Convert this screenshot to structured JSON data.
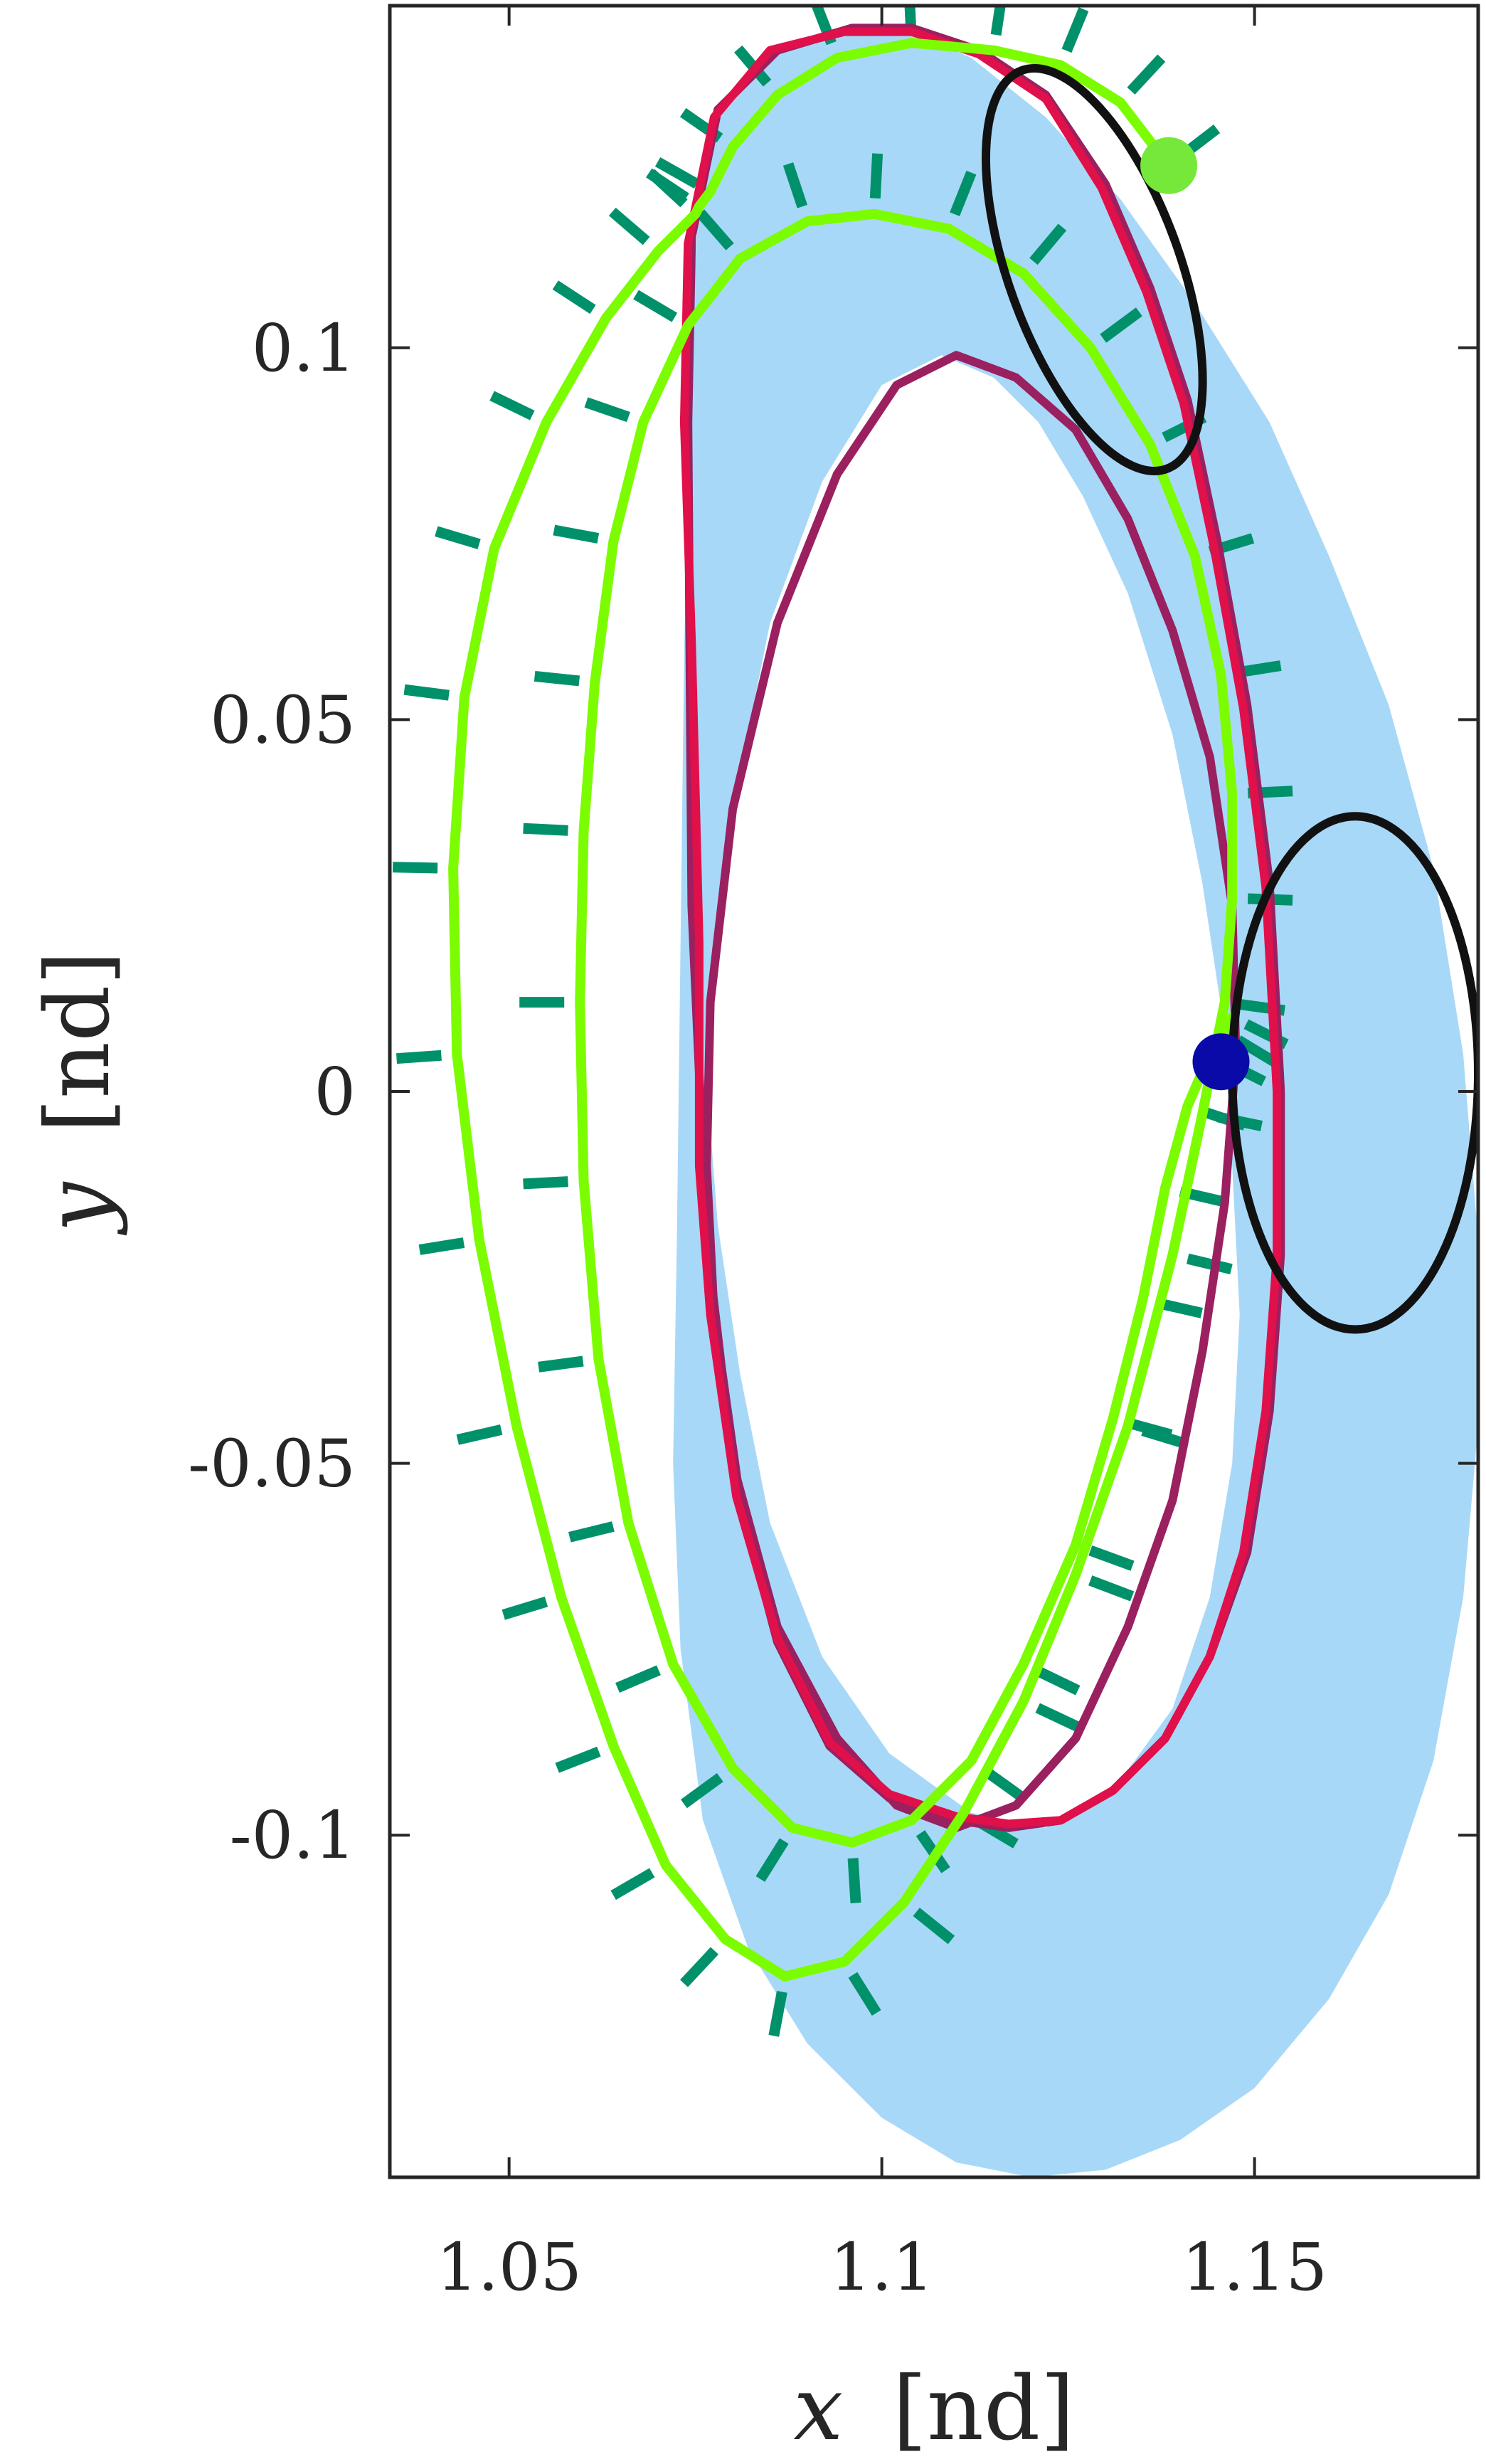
{
  "chart_data": {
    "type": "line",
    "title": "",
    "xlabel": {
      "var": "x",
      "unit": "[nd]"
    },
    "ylabel": {
      "var": "y",
      "unit": "[nd]"
    },
    "xlim": [
      1.034,
      1.18
    ],
    "ylim": [
      -0.146,
      0.146
    ],
    "xticks": [
      1.05,
      1.1,
      1.15
    ],
    "xtick_labels": [
      "1.05",
      "1.1",
      "1.15"
    ],
    "yticks": [
      -0.1,
      -0.05,
      0,
      0.05,
      0.1
    ],
    "ytick_labels": [
      "-0.1",
      "-0.05",
      "0",
      "0.05",
      "0.1"
    ],
    "grid": false,
    "colors": {
      "region": "#a8d8f8",
      "magenta": "#9a2060",
      "red": "#e0104a",
      "lime": "#7cfc00",
      "green": "#00916b",
      "black": "#111111",
      "blue_point": "#0a0aa8",
      "green_point": "#76e83a"
    },
    "shaded_region": {
      "x": [
        1.0755,
        1.0795,
        1.086,
        1.095,
        1.103,
        1.112,
        1.122,
        1.132,
        1.142,
        1.152,
        1.16,
        1.168,
        1.174,
        1.178,
        1.18,
        1.18,
        1.178,
        1.174,
        1.168,
        1.16,
        1.15,
        1.14,
        1.13,
        1.12,
        1.11,
        1.1,
        1.09,
        1.082,
        1.076,
        1.073,
        1.072,
        1.0725,
        1.073,
        1.0735,
        1.0745,
        1.0755
      ],
      "y": [
        0.123,
        0.134,
        0.14,
        0.143,
        0.143,
        0.139,
        0.131,
        0.12,
        0.106,
        0.09,
        0.072,
        0.052,
        0.03,
        0.005,
        -0.02,
        -0.045,
        -0.068,
        -0.09,
        -0.108,
        -0.122,
        -0.134,
        -0.141,
        -0.145,
        -0.146,
        -0.144,
        -0.138,
        -0.128,
        -0.115,
        -0.098,
        -0.075,
        -0.05,
        -0.02,
        0.02,
        0.06,
        0.1,
        0.123
      ]
    },
    "hole_region": {
      "x": [
        1.077,
        1.08,
        1.085,
        1.092,
        1.1,
        1.108,
        1.115,
        1.121,
        1.127,
        1.133,
        1.139,
        1.143,
        1.146,
        1.147,
        1.148,
        1.147,
        1.144,
        1.139,
        1.131,
        1.122,
        1.112,
        1.101,
        1.092,
        1.085,
        1.081,
        1.078,
        1.077,
        1.0765,
        1.077
      ],
      "y": [
        0.01,
        0.038,
        0.063,
        0.082,
        0.095,
        0.099,
        0.096,
        0.09,
        0.08,
        0.067,
        0.048,
        0.028,
        0.008,
        -0.01,
        -0.03,
        -0.05,
        -0.068,
        -0.083,
        -0.094,
        -0.099,
        -0.097,
        -0.089,
        -0.076,
        -0.058,
        -0.038,
        -0.018,
        -0.005,
        0.002,
        0.01
      ]
    },
    "series": [
      {
        "color": "#9a2060",
        "x": [
          1.074,
          1.0745,
          1.078,
          1.086,
          1.096,
          1.104,
          1.113,
          1.122,
          1.13,
          1.136,
          1.141,
          1.145,
          1.149,
          1.152,
          1.1535,
          1.1535,
          1.152,
          1.149,
          1.144,
          1.138,
          1.131,
          1.124,
          1.117,
          1.11,
          1.101,
          1.093,
          1.086,
          1.081,
          1.0775,
          1.0765,
          1.077,
          1.08,
          1.086,
          1.094,
          1.102,
          1.11,
          1.118,
          1.126,
          1.133,
          1.139,
          1.144,
          1.147,
          1.1475,
          1.146,
          1.143,
          1.139,
          1.133,
          1.126,
          1.118,
          1.11,
          1.102,
          1.094,
          1.086,
          1.08,
          1.0765,
          1.0745,
          1.074
        ],
        "y": [
          0.09,
          0.115,
          0.132,
          0.14,
          0.143,
          0.143,
          0.14,
          0.134,
          0.122,
          0.108,
          0.093,
          0.074,
          0.052,
          0.028,
          0.0,
          -0.022,
          -0.043,
          -0.062,
          -0.076,
          -0.087,
          -0.094,
          -0.098,
          -0.099,
          -0.098,
          -0.095,
          -0.088,
          -0.074,
          -0.055,
          -0.03,
          -0.01,
          0.012,
          0.038,
          0.063,
          0.083,
          0.095,
          0.099,
          0.096,
          0.089,
          0.077,
          0.062,
          0.045,
          0.025,
          0.005,
          -0.015,
          -0.035,
          -0.055,
          -0.072,
          -0.087,
          -0.096,
          -0.099,
          -0.096,
          -0.087,
          -0.072,
          -0.05,
          -0.02,
          0.025,
          0.09
        ]
      },
      {
        "color": "#e0104a",
        "x": [
          1.0735,
          1.074,
          1.0775,
          1.085,
          1.095,
          1.104,
          1.113,
          1.122,
          1.1295,
          1.1355,
          1.1405,
          1.1445,
          1.1485,
          1.1515,
          1.153,
          1.153,
          1.1515,
          1.1485,
          1.144,
          1.138,
          1.131,
          1.124,
          1.117,
          1.11,
          1.101,
          1.093,
          1.086,
          1.0805,
          1.077,
          1.0755,
          1.0755,
          1.0745,
          1.0735
        ],
        "y": [
          0.09,
          0.114,
          0.131,
          0.14,
          0.1425,
          0.1425,
          0.1395,
          0.1335,
          0.1215,
          0.1075,
          0.0925,
          0.0735,
          0.0515,
          0.0275,
          0.0,
          -0.022,
          -0.043,
          -0.062,
          -0.076,
          -0.087,
          -0.094,
          -0.098,
          -0.0985,
          -0.0975,
          -0.0945,
          -0.0875,
          -0.0735,
          -0.0545,
          -0.03,
          -0.01,
          0.02,
          0.06,
          0.09
        ]
      },
      {
        "color": "#7cfc00",
        "x": [
          1.1385,
          1.132,
          1.124,
          1.115,
          1.104,
          1.094,
          1.086,
          1.08,
          1.077,
          1.0755,
          1.075,
          1.07,
          1.063,
          1.055,
          1.048,
          1.044,
          1.0425,
          1.043,
          1.046,
          1.051,
          1.057,
          1.064,
          1.071,
          1.079,
          1.087,
          1.095,
          1.103,
          1.111,
          1.119,
          1.126,
          1.133,
          1.139,
          1.143,
          1.146,
          1.147,
          1.147,
          1.1455,
          1.142,
          1.136,
          1.128,
          1.119,
          1.109,
          1.099,
          1.09,
          1.081,
          1.074,
          1.068,
          1.064,
          1.0615,
          1.06,
          1.0595,
          1.06,
          1.062,
          1.066,
          1.072,
          1.08,
          1.088,
          1.096,
          1.104,
          1.112,
          1.119,
          1.126,
          1.131,
          1.135,
          1.138,
          1.141,
          1.144,
          1.146,
          1.147
        ],
        "y": [
          0.1245,
          0.133,
          0.138,
          0.14,
          0.141,
          0.139,
          0.134,
          0.127,
          0.121,
          0.119,
          0.118,
          0.113,
          0.104,
          0.09,
          0.073,
          0.053,
          0.03,
          0.005,
          -0.02,
          -0.045,
          -0.068,
          -0.088,
          -0.104,
          -0.114,
          -0.119,
          -0.117,
          -0.109,
          -0.097,
          -0.082,
          -0.065,
          -0.045,
          -0.022,
          -0.003,
          0.012,
          0.026,
          0.04,
          0.056,
          0.072,
          0.087,
          0.1,
          0.11,
          0.116,
          0.118,
          0.117,
          0.112,
          0.103,
          0.09,
          0.074,
          0.055,
          0.035,
          0.012,
          -0.012,
          -0.036,
          -0.058,
          -0.077,
          -0.091,
          -0.099,
          -0.101,
          -0.098,
          -0.09,
          -0.077,
          -0.061,
          -0.044,
          -0.028,
          -0.013,
          -0.002,
          0.005,
          0.008,
          0.01
        ]
      },
      {
        "color": "#111111",
        "center": [
          1.1285,
          0.1105
        ],
        "rx": 0.0115,
        "ry": 0.0285,
        "rotation_deg": -20
      },
      {
        "color": "#111111",
        "center": [
          1.1635,
          0.0025
        ],
        "rx": 0.0165,
        "ry": 0.0345,
        "rotation_deg": 0
      }
    ],
    "points": [
      {
        "color": "#0a0aa8",
        "x": 1.1455,
        "y": 0.004
      },
      {
        "color": "#76e83a",
        "x": 1.1385,
        "y": 0.1245
      }
    ]
  }
}
